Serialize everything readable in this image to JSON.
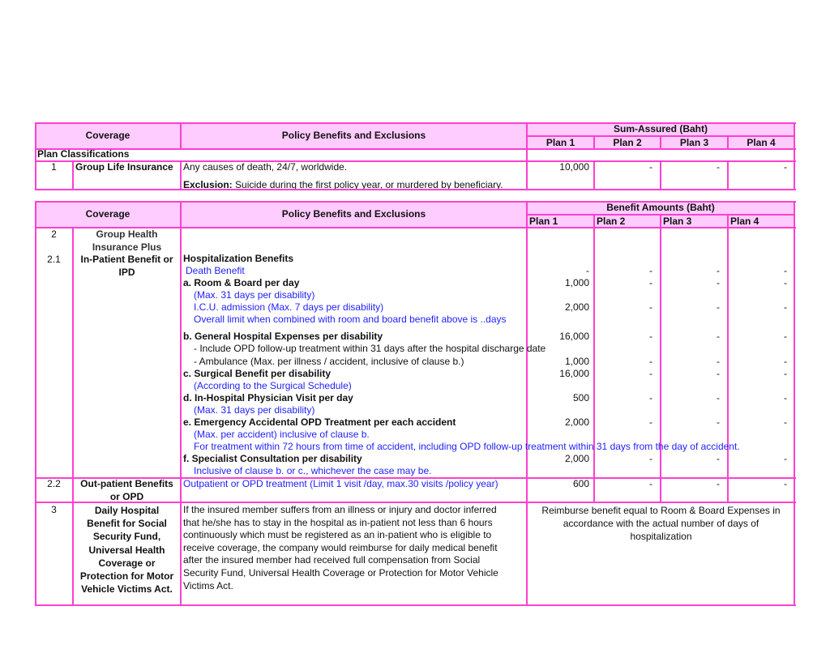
{
  "colors": {
    "border": "#ff3fd0",
    "header_bg": "#ffccff",
    "blue_text": "#1f1fff"
  },
  "table1": {
    "header": {
      "coverage": "Coverage",
      "policy": "Policy Benefits and Exclusions",
      "sum_assured": "Sum-Assured (Baht)",
      "plans": [
        "Plan 1",
        "Plan 2",
        "Plan 3",
        "Plan 4"
      ]
    },
    "section": "Plan Classifications",
    "row1": {
      "no": "1",
      "coverage": "Group Life Insurance",
      "benefit": "Any causes of death, 24/7, worldwide.",
      "exclusion_label": "Exclusion:",
      "exclusion_text": " Suicide during the first policy year, or murdered by beneficiary.",
      "values": [
        "10,000",
        "-",
        "-",
        "-"
      ]
    }
  },
  "table2": {
    "header": {
      "coverage": "Coverage",
      "policy": "Policy Benefits and Exclusions",
      "benefit_amounts": "Benefit Amounts (Baht)",
      "plans": [
        "Plan 1",
        "Plan 2",
        "Plan 3",
        "Plan 4"
      ]
    },
    "row2": {
      "no": "2",
      "coverage_1": "Group Health",
      "coverage_2": "Insurance Plus",
      "sub_no": "2.1",
      "sub_coverage_1": "In-Patient Benefit or",
      "sub_coverage_2": "IPD",
      "lines": [
        {
          "text": "Hospitalization Benefits"
        },
        {
          "text": "Death Benefit",
          "values": [
            "-",
            "-",
            "-",
            "-"
          ]
        },
        {
          "text": "a. Room & Board per day",
          "values": [
            "1,000",
            "-",
            "-",
            "-"
          ]
        },
        {
          "text": "(Max. 31 days per disability)"
        },
        {
          "text": "I.C.U. admission (Max. 7 days per disability)",
          "values": [
            "2,000",
            "-",
            "-",
            "-"
          ]
        },
        {
          "text": "Overall limit when combined with room and board benefit above is ..days"
        },
        {
          "text": "b. General Hospital Expenses per disability",
          "values": [
            "16,000",
            "-",
            "-",
            "-"
          ]
        },
        {
          "text": "- Include OPD follow-up treatment within 31 days after the hospital discharge date"
        },
        {
          "text": "- Ambulance (Max. per illness / accident, inclusive of clause b.)",
          "values": [
            "1,000",
            "-",
            "-",
            "-"
          ]
        },
        {
          "text": "c. Surgical Benefit per disability",
          "values": [
            "16,000",
            "-",
            "-",
            "-"
          ]
        },
        {
          "text": "(According to the Surgical Schedule)"
        },
        {
          "text": "d. In-Hospital Physician Visit per day",
          "values": [
            "500",
            "-",
            "-",
            "-"
          ]
        },
        {
          "text": "(Max. 31 days per disability)"
        },
        {
          "text": "e. Emergency Accidental OPD Treatment per each accident",
          "values": [
            "2,000",
            "-",
            "-",
            "-"
          ]
        },
        {
          "text": "(Max. per accident) inclusive of  clause b."
        },
        {
          "text": "For treatment within 72 hours from time of accident, including OPD follow-up treatment within 31 days from the day of accident."
        },
        {
          "text": "f. Specialist Consultation per disability",
          "values": [
            "2,000",
            "-",
            "-",
            "-"
          ]
        },
        {
          "text": "Inclusive of clause b. or c., whichever the case may be."
        }
      ]
    },
    "row22": {
      "no": "2.2",
      "coverage_1": "Out-patient Benefits",
      "coverage_2": "or OPD",
      "text": "Outpatient or OPD treatment (Limit 1 visit /day, max.30 visits /policy year)",
      "values": [
        "600",
        "-",
        "-",
        "-"
      ]
    },
    "row3": {
      "no": "3",
      "coverage": [
        "Daily Hospital",
        "Benefit for Social",
        "Security Fund,",
        "Universal Health",
        "Coverage or",
        "Protection for Motor",
        "Vehicle Victims Act."
      ],
      "text": [
        "If the insured member suffers from an illness or injury and doctor inferred",
        "that he/she has to stay in the hospital as in-patient not less than 6 hours",
        "continuously which must be registered as an in-patient who is eligible to",
        "receive coverage, the company would reimburse for daily medical benefit",
        "after the insured member had received full compensation from Social",
        "Security Fund, Universal Health Coverage or Protection for Motor Vehicle",
        "Victims Act."
      ],
      "benefit": [
        "Reimburse benefit equal to Room & Board Expenses in",
        "accordance with the actual number of days of",
        "hospitalization"
      ]
    }
  }
}
